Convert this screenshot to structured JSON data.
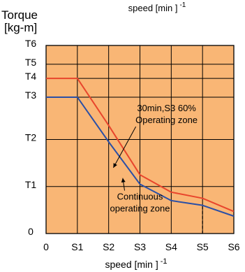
{
  "chart_data": {
    "type": "line",
    "top_caption": {
      "text": "speed [min ]",
      "exp": "-1"
    },
    "ylabel_line1": "Torque",
    "ylabel_line2": "[kg-m]",
    "xlabel": {
      "text": "speed [min ]",
      "exp": "-1"
    },
    "x_ticks": [
      "0",
      "S1",
      "S2",
      "S3",
      "S4",
      "S5",
      "S6"
    ],
    "y_ticks": [
      "0",
      "T1",
      "T2",
      "T3",
      "T4",
      "T5",
      "T6"
    ],
    "y_tick_values": [
      0,
      1,
      2,
      2.9,
      3.3,
      3.6,
      4
    ],
    "xlim": [
      0,
      6
    ],
    "ylim": [
      0,
      4
    ],
    "grid": true,
    "colors": {
      "plot_bg": "#f9b675",
      "grid": "#000000",
      "s3_line": "#e8452c",
      "continuous_line": "#2a4fa6",
      "dash": "#000000"
    },
    "series": [
      {
        "x": [
          0,
          1,
          2,
          3,
          4,
          5,
          6
        ],
        "y": [
          3.3,
          3.3,
          2.3,
          1.25,
          0.88,
          0.75,
          0.47
        ]
      },
      {
        "x": [
          0,
          1,
          2,
          3,
          4,
          5,
          6
        ],
        "y": [
          2.9,
          2.9,
          1.95,
          1.05,
          0.7,
          0.6,
          0.37
        ]
      }
    ],
    "dashed_marker": {
      "x": 5,
      "y_from": 0,
      "y_to": 0.6
    },
    "annotations": [
      {
        "lines": [
          "30min,S3 60%",
          "Operating zone"
        ],
        "x": 3.85,
        "y": 2.6,
        "arrow_to": {
          "x": 2.15,
          "y": 1.4
        }
      },
      {
        "lines": [
          "Continuous",
          "operating zone"
        ],
        "x": 3.0,
        "y": 0.72,
        "arrow_to": {
          "x": 2.45,
          "y": 1.18
        }
      }
    ]
  }
}
